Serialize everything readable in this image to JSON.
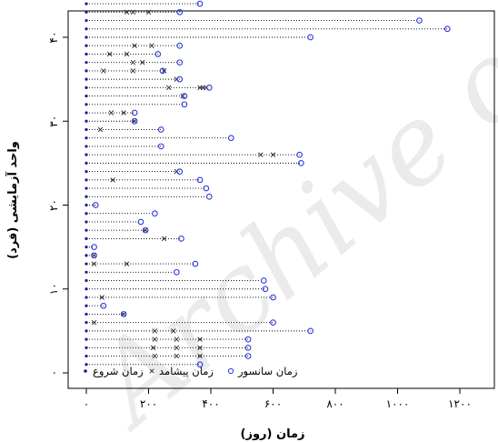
{
  "chart_data": {
    "type": "scatter",
    "xlabel": "زمان (روز)",
    "ylabel": "واحد آزمایشی (فرد)",
    "xlim": [
      -30,
      1300
    ],
    "ylim": [
      -4,
      43
    ],
    "x_ticks": [
      0,
      200,
      400,
      600,
      800,
      1000,
      1200
    ],
    "x_tick_labels": [
      "۰",
      "۲۰۰",
      "۴۰۰",
      "۶۰۰",
      "۸۰۰",
      "۱۰۰۰",
      "۱۲۰۰"
    ],
    "y_ticks": [
      0,
      10,
      20,
      30,
      40
    ],
    "y_tick_labels": [
      "۰",
      "۱۰",
      "۲۰",
      "۳۰",
      "۴۰"
    ],
    "grid": false,
    "legend_position": "bottom-left",
    "legend": [
      {
        "label": "زمان شروع",
        "marker": "dot"
      },
      {
        "label": "زمان پیشامد",
        "marker": "x"
      },
      {
        "label": "زمان سانسور",
        "marker": "circle"
      }
    ],
    "units": [
      {
        "unit": 1,
        "start": 0,
        "events": [],
        "censor": 365
      },
      {
        "unit": 2,
        "start": 0,
        "events": [
          220,
          290,
          365
        ],
        "censor": 520
      },
      {
        "unit": 3,
        "start": 0,
        "events": [
          215,
          290,
          365
        ],
        "censor": 520
      },
      {
        "unit": 4,
        "start": 0,
        "events": [
          220,
          290,
          365
        ],
        "censor": 520
      },
      {
        "unit": 5,
        "start": 0,
        "events": [
          220,
          280
        ],
        "censor": 720
      },
      {
        "unit": 6,
        "start": 0,
        "events": [
          25
        ],
        "censor": 600
      },
      {
        "unit": 7,
        "start": 0,
        "events": [
          120
        ],
        "censor": 120
      },
      {
        "unit": 8,
        "start": 0,
        "events": [],
        "censor": 55
      },
      {
        "unit": 9,
        "start": 0,
        "events": [
          50
        ],
        "censor": 600
      },
      {
        "unit": 10,
        "start": 0,
        "events": [],
        "censor": 575
      },
      {
        "unit": 11,
        "start": 0,
        "events": [],
        "censor": 570
      },
      {
        "unit": 12,
        "start": 0,
        "events": [],
        "censor": 290
      },
      {
        "unit": 13,
        "start": 0,
        "events": [
          25,
          130
        ],
        "censor": 350
      },
      {
        "unit": 14,
        "start": 0,
        "events": [
          25
        ],
        "censor": 25
      },
      {
        "unit": 15,
        "start": 0,
        "events": [],
        "censor": 25
      },
      {
        "unit": 16,
        "start": 0,
        "events": [
          250
        ],
        "censor": 305
      },
      {
        "unit": 17,
        "start": 0,
        "events": [
          190
        ],
        "censor": 190
      },
      {
        "unit": 18,
        "start": 0,
        "events": [],
        "censor": 175
      },
      {
        "unit": 19,
        "start": 0,
        "events": [],
        "censor": 220
      },
      {
        "unit": 20,
        "start": 0,
        "events": [],
        "censor": 30
      },
      {
        "unit": 21,
        "start": 0,
        "events": [],
        "censor": 395
      },
      {
        "unit": 22,
        "start": 0,
        "events": [],
        "censor": 385
      },
      {
        "unit": 23,
        "start": 0,
        "events": [
          85
        ],
        "censor": 365
      },
      {
        "unit": 24,
        "start": 0,
        "events": [
          290
        ],
        "censor": 300
      },
      {
        "unit": 25,
        "start": 0,
        "events": [],
        "censor": 690
      },
      {
        "unit": 26,
        "start": 0,
        "events": [
          560,
          600
        ],
        "censor": 685
      },
      {
        "unit": 27,
        "start": 0,
        "events": [],
        "censor": 240
      },
      {
        "unit": 28,
        "start": 0,
        "events": [],
        "censor": 465
      },
      {
        "unit": 29,
        "start": 0,
        "events": [
          45
        ],
        "censor": 240
      },
      {
        "unit": 30,
        "start": 0,
        "events": [
          155
        ],
        "censor": 155
      },
      {
        "unit": 31,
        "start": 0,
        "events": [
          80,
          120
        ],
        "censor": 155
      },
      {
        "unit": 32,
        "start": 0,
        "events": [],
        "censor": 315
      },
      {
        "unit": 33,
        "start": 0,
        "events": [
          310
        ],
        "censor": 315
      },
      {
        "unit": 34,
        "start": 0,
        "events": [
          265,
          365,
          375,
          385
        ],
        "censor": 395
      },
      {
        "unit": 35,
        "start": 0,
        "events": [
          290
        ],
        "censor": 300
      },
      {
        "unit": 36,
        "start": 0,
        "events": [
          55,
          150,
          250
        ],
        "censor": 245
      },
      {
        "unit": 37,
        "start": 0,
        "events": [
          150,
          180
        ],
        "censor": 300
      },
      {
        "unit": 38,
        "start": 0,
        "events": [
          75,
          130
        ],
        "censor": 230
      },
      {
        "unit": 39,
        "start": 0,
        "events": [
          155,
          210
        ],
        "censor": 300
      },
      {
        "unit": 40,
        "start": 0,
        "events": [],
        "censor": 720
      },
      {
        "unit": 41,
        "start": 0,
        "events": [],
        "censor": 1160
      },
      {
        "unit": 42,
        "start": 0,
        "events": [],
        "censor": 1070
      },
      {
        "unit": 43,
        "start": 0,
        "events": [
          130,
          150,
          200
        ],
        "censor": 300
      },
      {
        "unit": 44,
        "start": 0,
        "events": [],
        "censor": 365
      },
      {
        "unit": 45,
        "start": 0,
        "events": [
          150
        ],
        "censor": 150
      },
      {
        "unit": 46,
        "start": 0,
        "events": [],
        "censor": 720
      },
      {
        "unit": 47,
        "start": 0,
        "events": [
          175,
          240
        ],
        "censor": 1290
      },
      {
        "unit": 48,
        "start": 0,
        "events": [
          175
        ],
        "censor": 550
      },
      {
        "unit": 49,
        "start": 0,
        "events": [],
        "censor": 365
      },
      {
        "unit": 50,
        "start": 0,
        "events": [
          365
        ],
        "censor": 370
      },
      {
        "unit": 51,
        "start": 0,
        "events": [],
        "censor": 1070
      }
    ],
    "colors": {
      "start": "#1a1a8c",
      "event": "#333333",
      "censor": "#2f3bd6",
      "line": "#000000",
      "axis": "#000000",
      "watermark": "#c8c8c8"
    },
    "watermark_text": "Archive of SID"
  }
}
